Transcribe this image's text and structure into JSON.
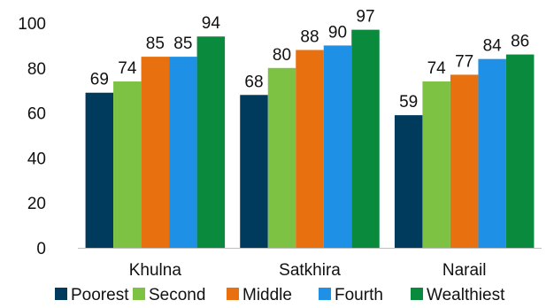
{
  "chart_data": {
    "type": "bar",
    "categories": [
      "Khulna",
      "Satkhira",
      "Narail"
    ],
    "series": [
      {
        "name": "Poorest",
        "color": "#003A5D",
        "values": [
          69,
          68,
          59
        ]
      },
      {
        "name": "Second",
        "color": "#7DC242",
        "values": [
          74,
          80,
          74
        ]
      },
      {
        "name": "Middle",
        "color": "#E8700F",
        "values": [
          85,
          88,
          77
        ]
      },
      {
        "name": "Fourth",
        "color": "#1E90E6",
        "values": [
          85,
          90,
          84
        ]
      },
      {
        "name": "Wealthiest",
        "color": "#0A8A3C",
        "values": [
          94,
          97,
          86
        ]
      }
    ],
    "ylim": [
      0,
      100
    ],
    "yticks": [
      0,
      20,
      40,
      60,
      80,
      100
    ],
    "grid": false,
    "legend_position": "bottom",
    "data_labels": true
  }
}
